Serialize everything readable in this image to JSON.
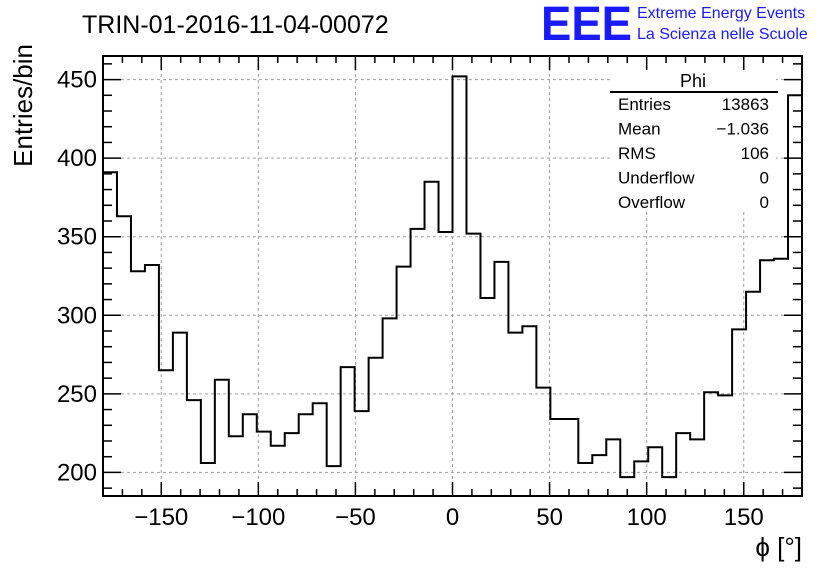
{
  "chart_data": {
    "type": "histogram",
    "title": "TRIN-01-2016-11-04-00072",
    "xlabel": "ϕ [°]",
    "ylabel": "Entries/bin",
    "xlim": [
      -180,
      180
    ],
    "ylim": [
      185,
      465
    ],
    "grid": true,
    "bin_edges": [
      -180,
      -172.8,
      -165.6,
      -158.4,
      -151.2,
      -144,
      -136.8,
      -129.6,
      -122.4,
      -115.2,
      -108,
      -100.8,
      -93.6,
      -86.4,
      -79.2,
      -72,
      -64.8,
      -57.6,
      -50.4,
      -43.2,
      -36,
      -28.8,
      -21.6,
      -14.4,
      -7.2,
      0,
      7.2,
      14.4,
      21.6,
      28.8,
      36,
      43.2,
      50.4,
      57.6,
      64.8,
      72,
      79.2,
      86.4,
      93.6,
      100.8,
      108,
      115.2,
      122.4,
      129.6,
      136.8,
      144,
      151.2,
      158.4,
      165.6,
      172.8,
      180
    ],
    "values": [
      391,
      363,
      328,
      332,
      265,
      289,
      246,
      206,
      259,
      223,
      237,
      226,
      217,
      225,
      237,
      244,
      204,
      267,
      239,
      273,
      298,
      331,
      355,
      385,
      353,
      452,
      352,
      311,
      334,
      289,
      293,
      254,
      234,
      234,
      206,
      211,
      221,
      197,
      207,
      216,
      197,
      225,
      221,
      251,
      249,
      291,
      315,
      335,
      336,
      440
    ],
    "x_ticks": [
      -150,
      -100,
      -50,
      0,
      50,
      100,
      150
    ],
    "x_tick_labels": [
      "−150",
      "−100",
      "−50",
      "0",
      "50",
      "100",
      "150"
    ],
    "y_ticks": [
      200,
      250,
      300,
      350,
      400,
      450
    ],
    "y_tick_labels": [
      "200",
      "250",
      "300",
      "350",
      "400",
      "450"
    ],
    "stats": {
      "name": "Phi",
      "rows": [
        {
          "label": "Entries",
          "value": "13863"
        },
        {
          "label": "Mean",
          "value": "−1.036"
        },
        {
          "label": "RMS",
          "value": "106"
        },
        {
          "label": "Underflow",
          "value": "0"
        },
        {
          "label": "Overflow",
          "value": "0"
        }
      ]
    }
  },
  "logo": {
    "text": "EEE",
    "line1": "Extreme Energy Events",
    "line2": "La Scienza nelle Scuole",
    "color": "#1a1aff"
  },
  "colors": {
    "line": "#000000",
    "grid": "#a0a0a0"
  }
}
